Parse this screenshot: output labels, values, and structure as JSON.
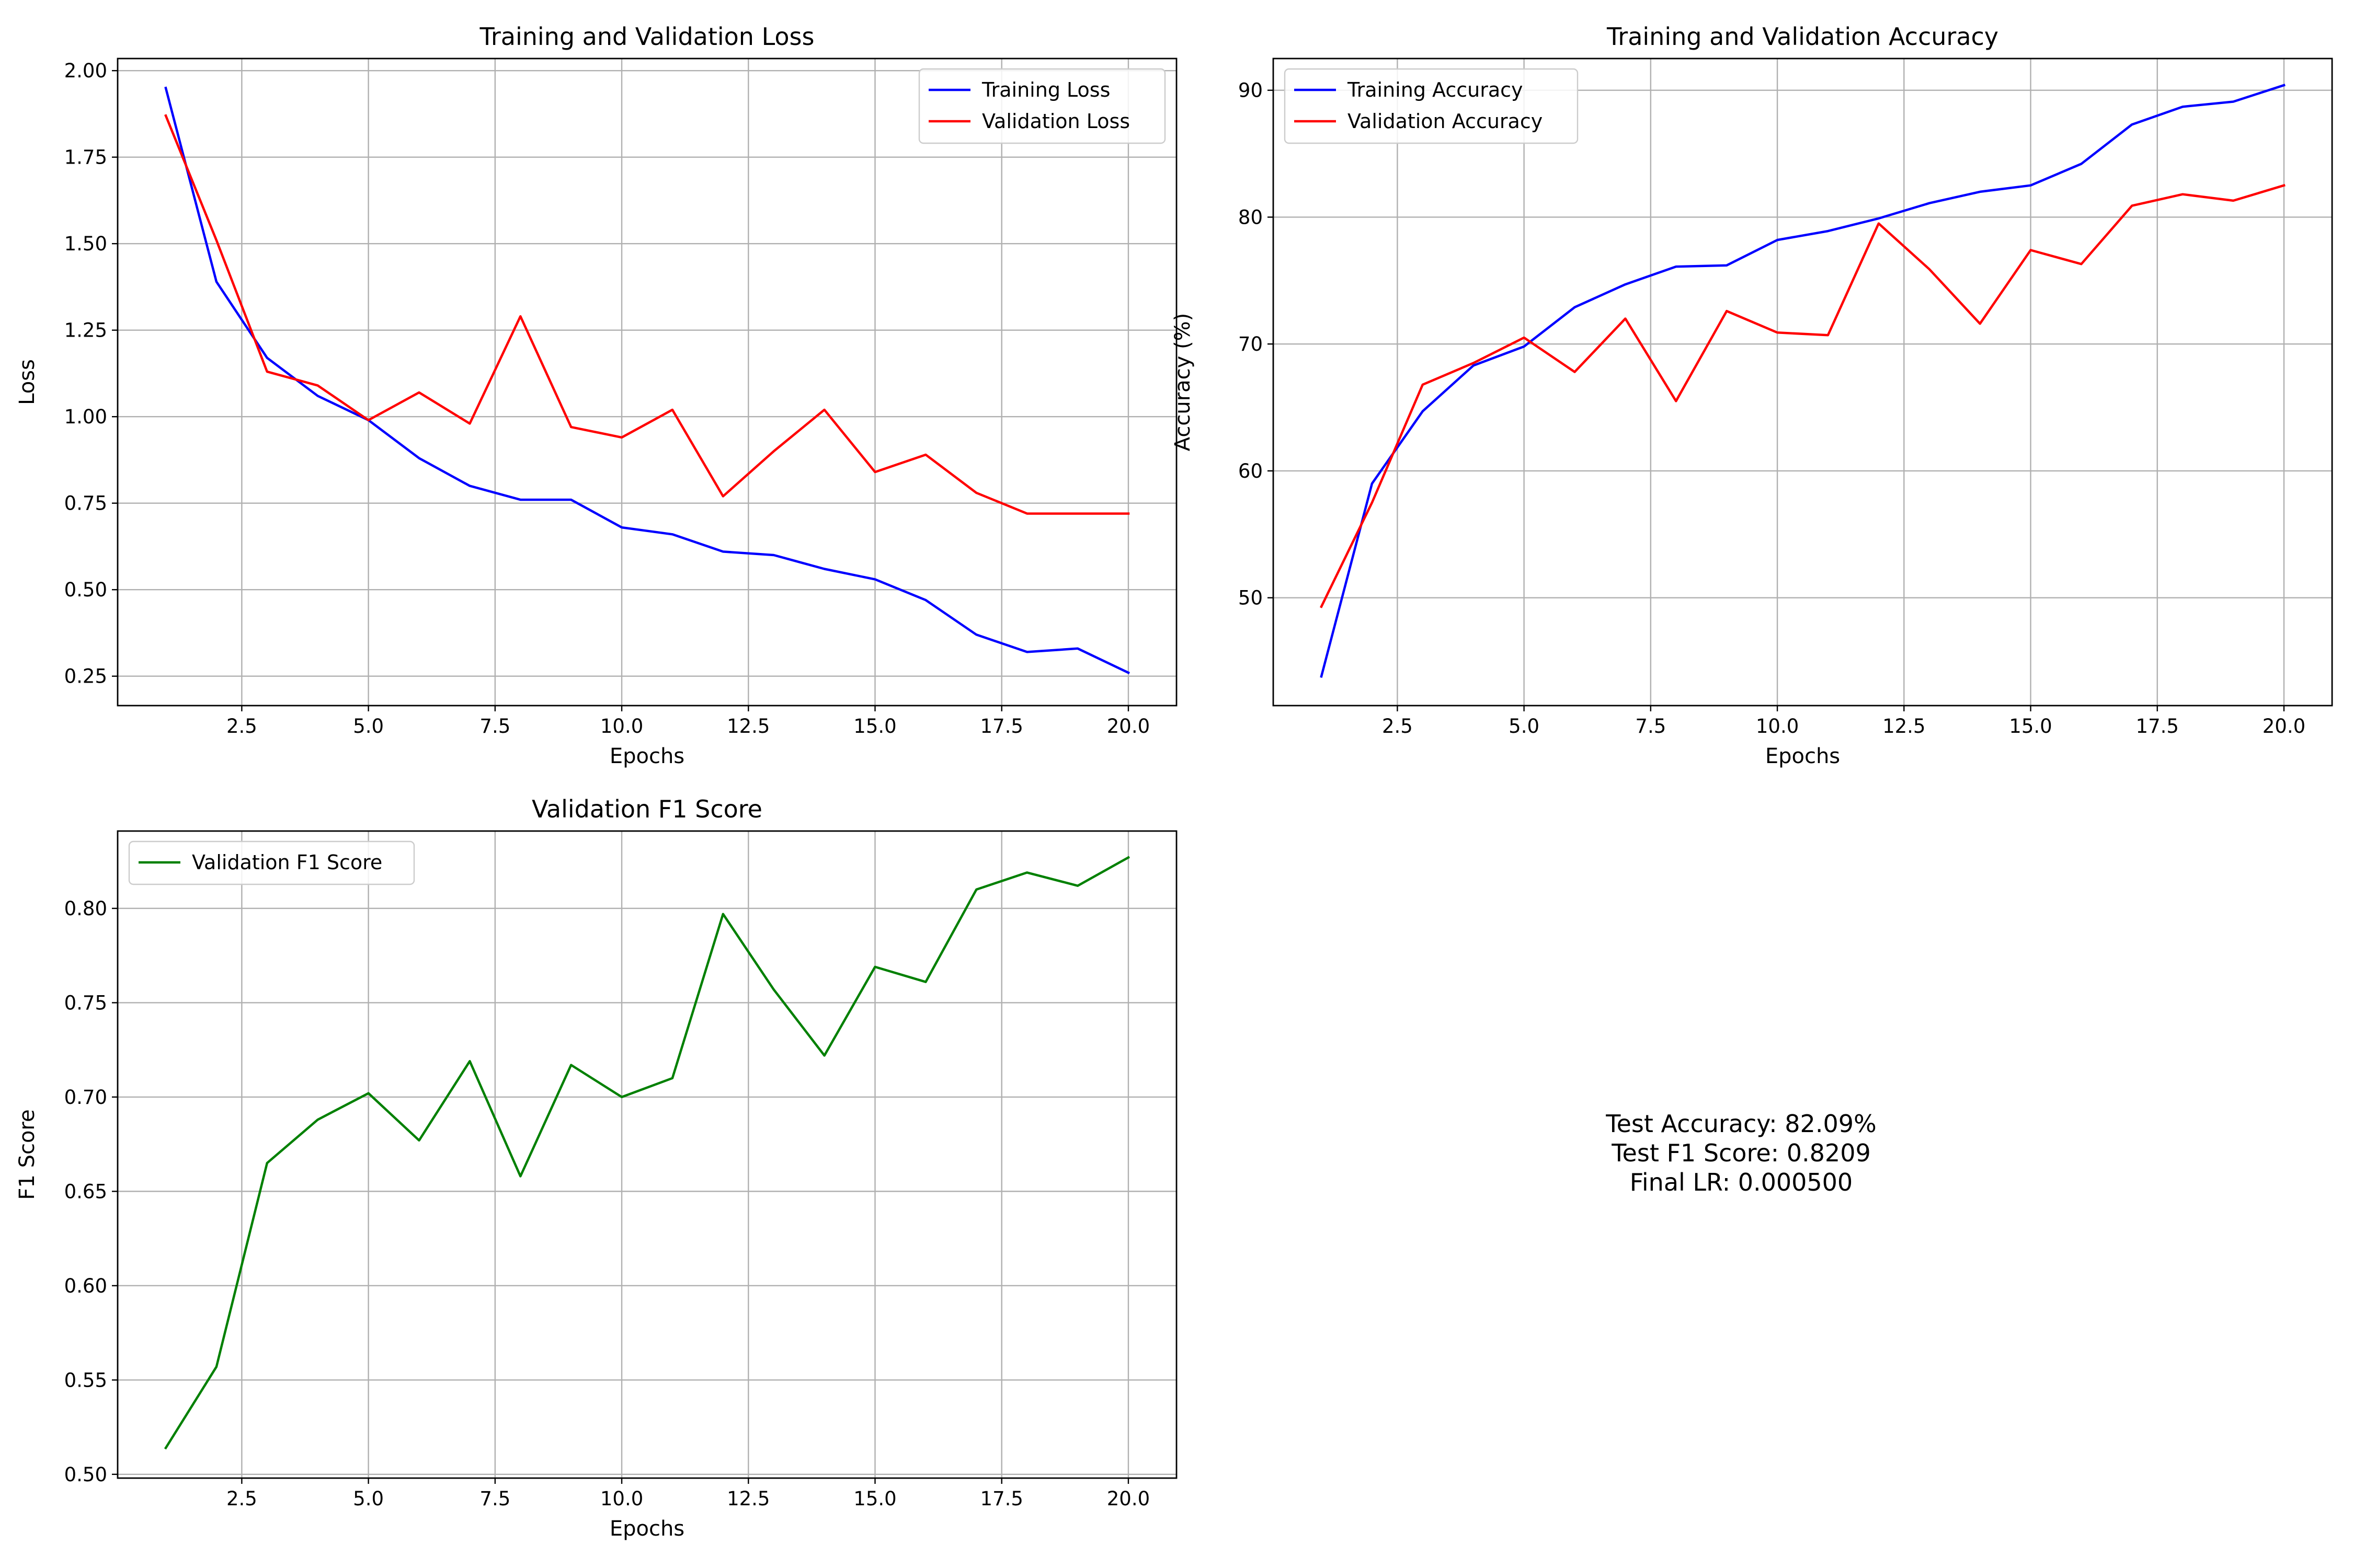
{
  "chart_data": [
    {
      "type": "line",
      "title": "Training and Validation Loss",
      "xlabel": "Epochs",
      "ylabel": "Loss",
      "x": [
        1,
        2,
        3,
        4,
        5,
        6,
        7,
        8,
        9,
        10,
        11,
        12,
        13,
        14,
        15,
        16,
        17,
        18,
        19,
        20
      ],
      "xlim": [
        0.05,
        20.95
      ],
      "ylim": [
        0.165,
        2.035
      ],
      "xticks": [
        2.5,
        5.0,
        7.5,
        10.0,
        12.5,
        15.0,
        17.5,
        20.0
      ],
      "xtick_labels": [
        "2.5",
        "5.0",
        "7.5",
        "10.0",
        "12.5",
        "15.0",
        "17.5",
        "20.0"
      ],
      "yticks": [
        0.25,
        0.5,
        0.75,
        1.0,
        1.25,
        1.5,
        1.75,
        2.0
      ],
      "ytick_labels": [
        "0.25",
        "0.50",
        "0.75",
        "1.00",
        "1.25",
        "1.50",
        "1.75",
        "2.00"
      ],
      "grid": true,
      "legend": "upper right",
      "series": [
        {
          "name": "Training Loss",
          "color": "#0000ff",
          "values": [
            1.95,
            1.39,
            1.17,
            1.06,
            0.99,
            0.88,
            0.8,
            0.76,
            0.76,
            0.68,
            0.66,
            0.61,
            0.6,
            0.56,
            0.53,
            0.47,
            0.37,
            0.32,
            0.33,
            0.26
          ]
        },
        {
          "name": "Validation Loss",
          "color": "#ff0000",
          "values": [
            1.87,
            1.51,
            1.13,
            1.09,
            0.99,
            1.07,
            0.98,
            1.29,
            0.97,
            0.94,
            1.02,
            0.77,
            0.9,
            1.02,
            0.84,
            0.89,
            0.78,
            0.72,
            0.72,
            0.72
          ]
        }
      ]
    },
    {
      "type": "line",
      "title": "Training and Validation Accuracy",
      "xlabel": "Epochs",
      "ylabel": "Accuracy (%)",
      "x": [
        1,
        2,
        3,
        4,
        5,
        6,
        7,
        8,
        9,
        10,
        11,
        12,
        13,
        14,
        15,
        16,
        17,
        18,
        19,
        20
      ],
      "xlim": [
        0.05,
        20.95
      ],
      "ylim": [
        41.5,
        92.5
      ],
      "xticks": [
        2.5,
        5.0,
        7.5,
        10.0,
        12.5,
        15.0,
        17.5,
        20.0
      ],
      "xtick_labels": [
        "2.5",
        "5.0",
        "7.5",
        "10.0",
        "12.5",
        "15.0",
        "17.5",
        "20.0"
      ],
      "yticks": [
        50,
        60,
        70,
        80,
        90
      ],
      "ytick_labels": [
        "50",
        "60",
        "70",
        "80",
        "90"
      ],
      "grid": true,
      "legend": "upper left",
      "series": [
        {
          "name": "Training Accuracy",
          "color": "#0000ff",
          "values": [
            43.8,
            59.0,
            64.7,
            68.3,
            69.8,
            72.9,
            74.7,
            76.1,
            76.2,
            78.2,
            78.9,
            79.9,
            81.1,
            82.0,
            82.5,
            84.2,
            87.3,
            88.7,
            89.1,
            90.4
          ]
        },
        {
          "name": "Validation Accuracy",
          "color": "#ff0000",
          "values": [
            49.3,
            57.5,
            66.8,
            68.5,
            70.5,
            67.8,
            72.0,
            65.5,
            72.6,
            70.9,
            70.7,
            79.5,
            75.9,
            71.6,
            77.4,
            76.3,
            80.9,
            81.8,
            81.3,
            82.5
          ]
        }
      ]
    },
    {
      "type": "line",
      "title": "Validation F1 Score",
      "xlabel": "Epochs",
      "ylabel": "F1 Score",
      "x": [
        1,
        2,
        3,
        4,
        5,
        6,
        7,
        8,
        9,
        10,
        11,
        12,
        13,
        14,
        15,
        16,
        17,
        18,
        19,
        20
      ],
      "xlim": [
        0.05,
        20.95
      ],
      "ylim": [
        0.498,
        0.841
      ],
      "xticks": [
        2.5,
        5.0,
        7.5,
        10.0,
        12.5,
        15.0,
        17.5,
        20.0
      ],
      "xtick_labels": [
        "2.5",
        "5.0",
        "7.5",
        "10.0",
        "12.5",
        "15.0",
        "17.5",
        "20.0"
      ],
      "yticks": [
        0.5,
        0.55,
        0.6,
        0.65,
        0.7,
        0.75,
        0.8
      ],
      "ytick_labels": [
        "0.50",
        "0.55",
        "0.60",
        "0.65",
        "0.70",
        "0.75",
        "0.80"
      ],
      "grid": true,
      "legend": "upper left",
      "series": [
        {
          "name": "Validation F1 Score",
          "color": "#008000",
          "values": [
            0.514,
            0.557,
            0.665,
            0.688,
            0.702,
            0.677,
            0.719,
            0.658,
            0.717,
            0.7,
            0.71,
            0.797,
            0.757,
            0.722,
            0.769,
            0.761,
            0.81,
            0.819,
            0.812,
            0.827
          ]
        }
      ]
    }
  ],
  "summary": {
    "test_accuracy": "Test Accuracy: 82.09%",
    "test_f1": "Test F1 Score: 0.8209",
    "final_lr": "Final LR: 0.000500"
  }
}
